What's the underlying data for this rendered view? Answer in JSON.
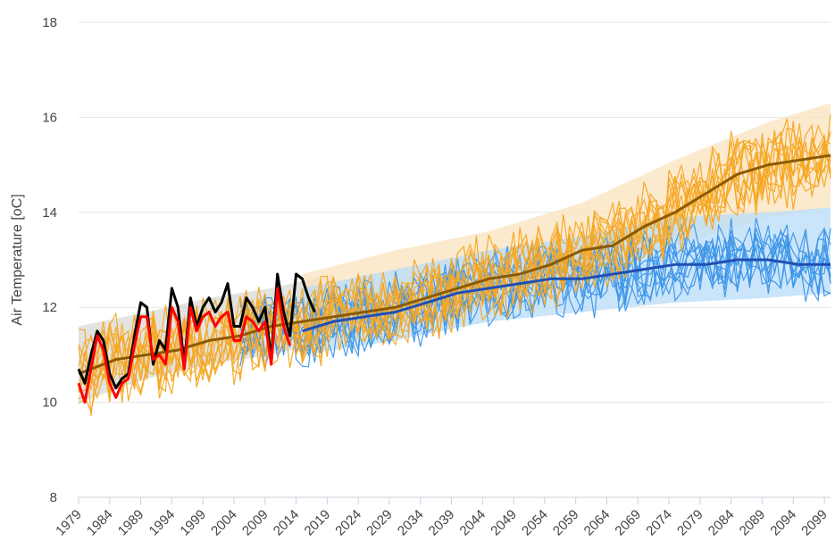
{
  "chart_data": {
    "type": "line",
    "title": "",
    "xlabel": "",
    "ylabel": "Air Temperature [oC]",
    "xlim": [
      1979,
      2100
    ],
    "ylim": [
      8,
      18
    ],
    "grid": true,
    "legend": "none",
    "y_ticks": [
      8,
      10,
      12,
      14,
      16,
      18
    ],
    "x_ticks": [
      1979,
      1984,
      1989,
      1994,
      1999,
      2004,
      2009,
      2014,
      2019,
      2024,
      2029,
      2034,
      2039,
      2044,
      2049,
      2054,
      2059,
      2064,
      2069,
      2074,
      2079,
      2084,
      2089,
      2094,
      2099
    ],
    "colors": {
      "ensemble_orange": "#f5a623",
      "ensemble_blue": "#3c95e8",
      "band_grey": "#d9d9d4",
      "band_orange": "#fbe3bd",
      "band_blue": "#b8dcf8",
      "mean_brown": "#8b5a00",
      "mean_blue": "#1f4fb4",
      "obs_black": "#000000",
      "obs_red": "#ff0000"
    },
    "series": [
      {
        "type": "ensemble",
        "color_key": "ensemble_orange",
        "x_range": [
          1979,
          2100
        ],
        "count": 12
      },
      {
        "type": "ensemble",
        "color_key": "ensemble_blue",
        "x_range": [
          2005,
          2100
        ],
        "count": 10
      },
      {
        "type": "band",
        "color_key": "band_grey",
        "x": [
          1979,
          1990,
          2000,
          2010,
          2020
        ],
        "lower": [
          10.0,
          10.5,
          10.8,
          11.0,
          11.3
        ],
        "upper": [
          11.6,
          11.9,
          12.2,
          12.4,
          12.7
        ]
      },
      {
        "type": "band",
        "color_key": "band_orange",
        "x": [
          2015,
          2030,
          2045,
          2060,
          2075,
          2090,
          2100
        ],
        "lower": [
          11.3,
          11.6,
          12.0,
          12.6,
          13.3,
          13.9,
          14.1
        ],
        "upper": [
          12.7,
          13.2,
          13.6,
          14.2,
          15.1,
          15.9,
          16.3
        ]
      },
      {
        "type": "band",
        "color_key": "band_blue",
        "x": [
          2015,
          2030,
          2045,
          2060,
          2075,
          2090,
          2100
        ],
        "lower": [
          11.0,
          11.3,
          11.7,
          11.9,
          12.1,
          12.2,
          12.3
        ],
        "upper": [
          12.4,
          12.8,
          13.2,
          13.5,
          13.9,
          14.0,
          14.1
        ]
      },
      {
        "type": "mean",
        "color_key": "mean_brown",
        "x": [
          1979,
          1985,
          1990,
          1995,
          2000,
          2005,
          2010,
          2015,
          2020,
          2025,
          2030,
          2035,
          2040,
          2045,
          2050,
          2055,
          2060,
          2065,
          2070,
          2075,
          2080,
          2085,
          2090,
          2095,
          2100
        ],
        "y": [
          10.6,
          10.9,
          11.0,
          11.1,
          11.3,
          11.4,
          11.6,
          11.7,
          11.8,
          11.9,
          12.0,
          12.2,
          12.4,
          12.6,
          12.7,
          12.9,
          13.2,
          13.3,
          13.7,
          14.0,
          14.4,
          14.8,
          15.0,
          15.1,
          15.2
        ]
      },
      {
        "type": "mean",
        "color_key": "mean_blue",
        "x": [
          2015,
          2020,
          2025,
          2030,
          2035,
          2040,
          2045,
          2050,
          2055,
          2060,
          2065,
          2070,
          2075,
          2080,
          2085,
          2090,
          2095,
          2100
        ],
        "y": [
          11.5,
          11.7,
          11.8,
          11.9,
          12.1,
          12.3,
          12.4,
          12.5,
          12.6,
          12.6,
          12.7,
          12.8,
          12.9,
          12.9,
          13.0,
          13.0,
          12.9,
          12.9
        ]
      },
      {
        "type": "obs",
        "color_key": "obs_black",
        "x": [
          1979,
          1980,
          1981,
          1982,
          1983,
          1984,
          1985,
          1986,
          1987,
          1988,
          1989,
          1990,
          1991,
          1992,
          1993,
          1994,
          1995,
          1996,
          1997,
          1998,
          1999,
          2000,
          2001,
          2002,
          2003,
          2004,
          2005,
          2006,
          2007,
          2008,
          2009,
          2010,
          2011,
          2012,
          2013,
          2014,
          2015,
          2016,
          2017
        ],
        "y": [
          10.7,
          10.4,
          11.0,
          11.5,
          11.3,
          10.6,
          10.3,
          10.5,
          10.6,
          11.4,
          12.1,
          12.0,
          10.8,
          11.3,
          11.1,
          12.4,
          12.0,
          10.8,
          12.2,
          11.6,
          12.0,
          12.2,
          11.9,
          12.1,
          12.5,
          11.6,
          11.6,
          12.2,
          12.0,
          11.7,
          12.0,
          10.9,
          12.7,
          11.9,
          11.4,
          12.7,
          12.6,
          12.2,
          11.9
        ]
      },
      {
        "type": "obs",
        "color_key": "obs_red",
        "x": [
          1979,
          1980,
          1981,
          1982,
          1983,
          1984,
          1985,
          1986,
          1987,
          1988,
          1989,
          1990,
          1991,
          1992,
          1993,
          1994,
          1995,
          1996,
          1997,
          1998,
          1999,
          2000,
          2001,
          2002,
          2003,
          2004,
          2005,
          2006,
          2007,
          2008,
          2009,
          2010,
          2011,
          2012,
          2013
        ],
        "y": [
          10.4,
          10.0,
          10.7,
          11.4,
          11.1,
          10.4,
          10.1,
          10.4,
          10.5,
          11.2,
          11.8,
          11.8,
          10.9,
          11.0,
          10.8,
          12.0,
          11.7,
          10.7,
          12.0,
          11.5,
          11.8,
          11.9,
          11.6,
          11.8,
          11.9,
          11.3,
          11.3,
          11.8,
          11.7,
          11.5,
          11.7,
          10.8,
          12.4,
          11.6,
          11.2
        ]
      }
    ]
  }
}
